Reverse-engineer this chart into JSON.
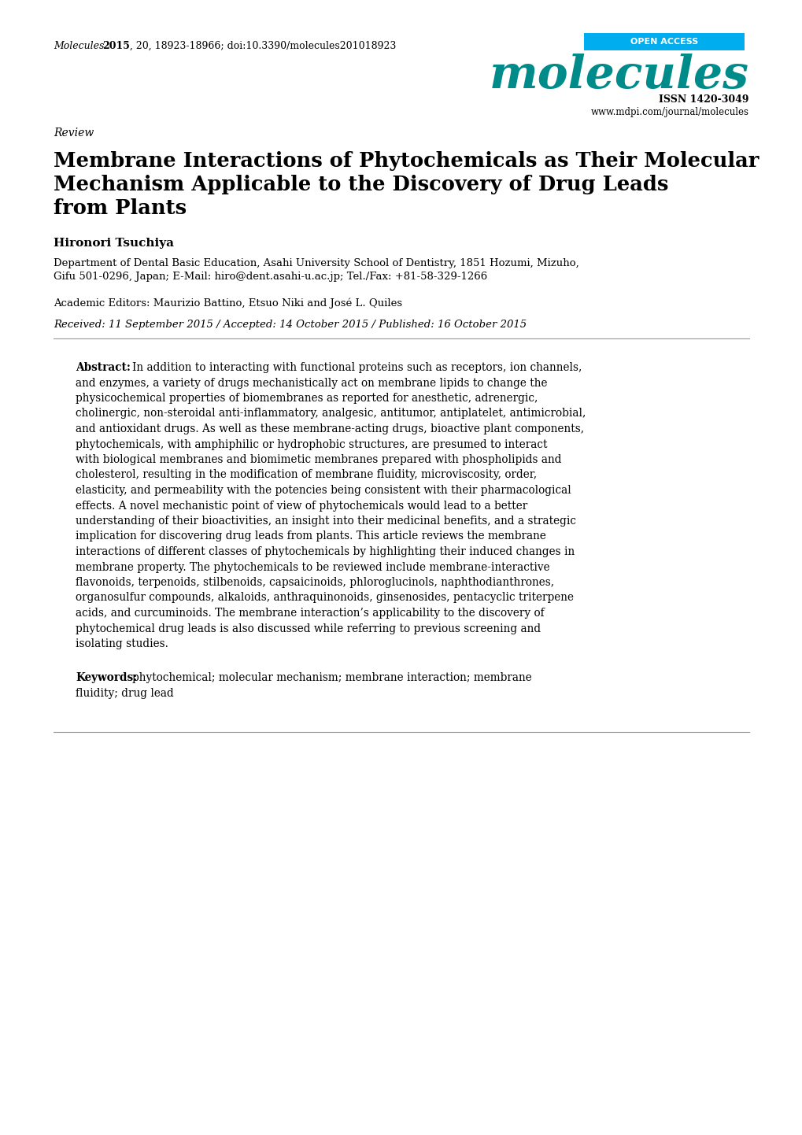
{
  "bg_color": "#ffffff",
  "open_access_text": "OPEN ACCESS",
  "open_access_bg": "#00AEEF",
  "open_access_text_color": "#ffffff",
  "journal_name": "molecules",
  "journal_color": "#008B8B",
  "issn_text": "ISSN 1420-3049",
  "website_text": "www.mdpi.com/journal/molecules",
  "section_label": "Review",
  "main_title_line1": "Membrane Interactions of Phytochemicals as Their Molecular",
  "main_title_line2": "Mechanism Applicable to the Discovery of Drug Leads",
  "main_title_line3": "from Plants",
  "author_name": "Hironori Tsuchiya",
  "affil_line1": "Department of Dental Basic Education, Asahi University School of Dentistry, 1851 Hozumi, Mizuho,",
  "affil_line2": "Gifu 501-0296, Japan; E-Mail: hiro@dent.asahi-u.ac.jp; Tel./Fax: +81-58-329-1266",
  "editors_line": "Academic Editors: Maurizio Battino, Etsuo Niki and José L. Quiles",
  "dates_line": "Received: 11 September 2015 / Accepted: 14 October 2015 / Published: 16 October 2015",
  "abstract_lines": [
    "In addition to interacting with functional proteins such as receptors, ion channels,",
    "and enzymes, a variety of drugs mechanistically act on membrane lipids to change the",
    "physicochemical properties of biomembranes as reported for anesthetic, adrenergic,",
    "cholinergic, non-steroidal anti-inflammatory, analgesic, antitumor, antiplatelet, antimicrobial,",
    "and antioxidant drugs. As well as these membrane-acting drugs, bioactive plant components,",
    "phytochemicals, with amphiphilic or hydrophobic structures, are presumed to interact",
    "with biological membranes and biomimetic membranes prepared with phospholipids and",
    "cholesterol, resulting in the modification of membrane fluidity, microviscosity, order,",
    "elasticity, and permeability with the potencies being consistent with their pharmacological",
    "effects. A novel mechanistic point of view of phytochemicals would lead to a better",
    "understanding of their bioactivities, an insight into their medicinal benefits, and a strategic",
    "implication for discovering drug leads from plants. This article reviews the membrane",
    "interactions of different classes of phytochemicals by highlighting their induced changes in",
    "membrane property. The phytochemicals to be reviewed include membrane-interactive",
    "flavonoids, terpenoids, stilbenoids, capsaicinoids, phloroglucinols, naphthodianthrones,",
    "organosulfur compounds, alkaloids, anthraquinonoids, ginsenosides, pentacyclic triterpene",
    "acids, and curcuminoids. The membrane interaction’s applicability to the discovery of",
    "phytochemical drug leads is also discussed while referring to previous screening and",
    "isolating studies."
  ],
  "kw_line1": "phytochemical; molecular mechanism; membrane interaction; membrane",
  "kw_line2": "fluidity; drug lead",
  "separator_color": "#999999",
  "text_color": "#000000",
  "text_color_dark": "#1a1a1a"
}
